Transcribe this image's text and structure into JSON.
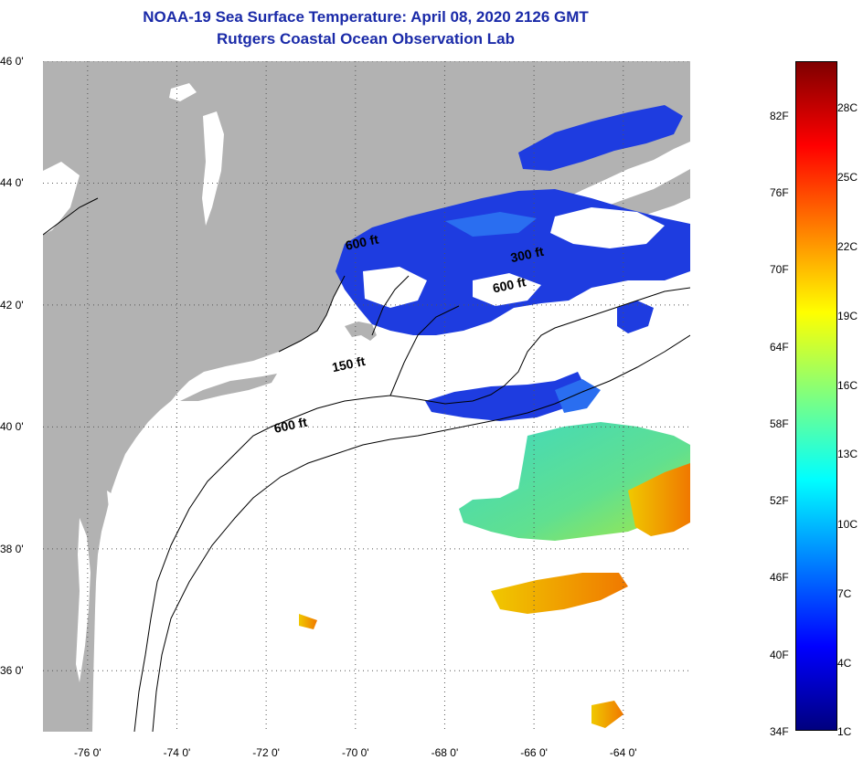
{
  "title": {
    "line1": "NOAA-19 Sea Surface Temperature:  April 08, 2020 2126 GMT",
    "line2": "Rutgers Coastal Ocean Observation Lab"
  },
  "map": {
    "lat_range": [
      35,
      46
    ],
    "lon_range": [
      -77,
      -62.5
    ],
    "lat_ticks": [
      {
        "value": 46,
        "label": "46 0'"
      },
      {
        "value": 44,
        "label": "44 0'"
      },
      {
        "value": 42,
        "label": "42 0'"
      },
      {
        "value": 40,
        "label": "40 0'"
      },
      {
        "value": 38,
        "label": "38 0'"
      },
      {
        "value": 36,
        "label": "36 0'"
      }
    ],
    "lon_ticks": [
      {
        "value": -76,
        "label": "-76 0'"
      },
      {
        "value": -74,
        "label": "-74 0'"
      },
      {
        "value": -72,
        "label": "-72 0'"
      },
      {
        "value": -70,
        "label": "-70 0'"
      },
      {
        "value": -68,
        "label": "-68 0'"
      },
      {
        "value": -66,
        "label": "-66 0'"
      },
      {
        "value": -64,
        "label": "-64 0'"
      }
    ],
    "gridlines": "dotted",
    "colors": {
      "land": "#b2b2b2",
      "cloud_nodata": "#ffffff",
      "cold_water": "#1e3ce0",
      "contour": "#000000"
    },
    "contour_labels": [
      {
        "text": "600 ft",
        "lon": -70.2,
        "lat": 42.9
      },
      {
        "text": "300 ft",
        "lon": -66.5,
        "lat": 42.7
      },
      {
        "text": "600 ft",
        "lon": -66.9,
        "lat": 42.2
      },
      {
        "text": "150 ft",
        "lon": -70.5,
        "lat": 40.9
      },
      {
        "text": "600 ft",
        "lon": -71.8,
        "lat": 39.9
      }
    ]
  },
  "colorbar": {
    "orientation": "vertical",
    "placement": "right",
    "gradient": [
      "#00007f",
      "#0000ff",
      "#007fff",
      "#00ffff",
      "#7fff7f",
      "#ffff00",
      "#ff7f00",
      "#ff0000",
      "#7f0000"
    ],
    "fahrenheit_labels": [
      "82F",
      "76F",
      "70F",
      "64F",
      "58F",
      "52F",
      "46F",
      "40F",
      "34F"
    ],
    "celsius_labels": [
      "28C",
      "25C",
      "22C",
      "19C",
      "16C",
      "13C",
      "10C",
      "7C",
      "4C",
      "1C"
    ]
  }
}
